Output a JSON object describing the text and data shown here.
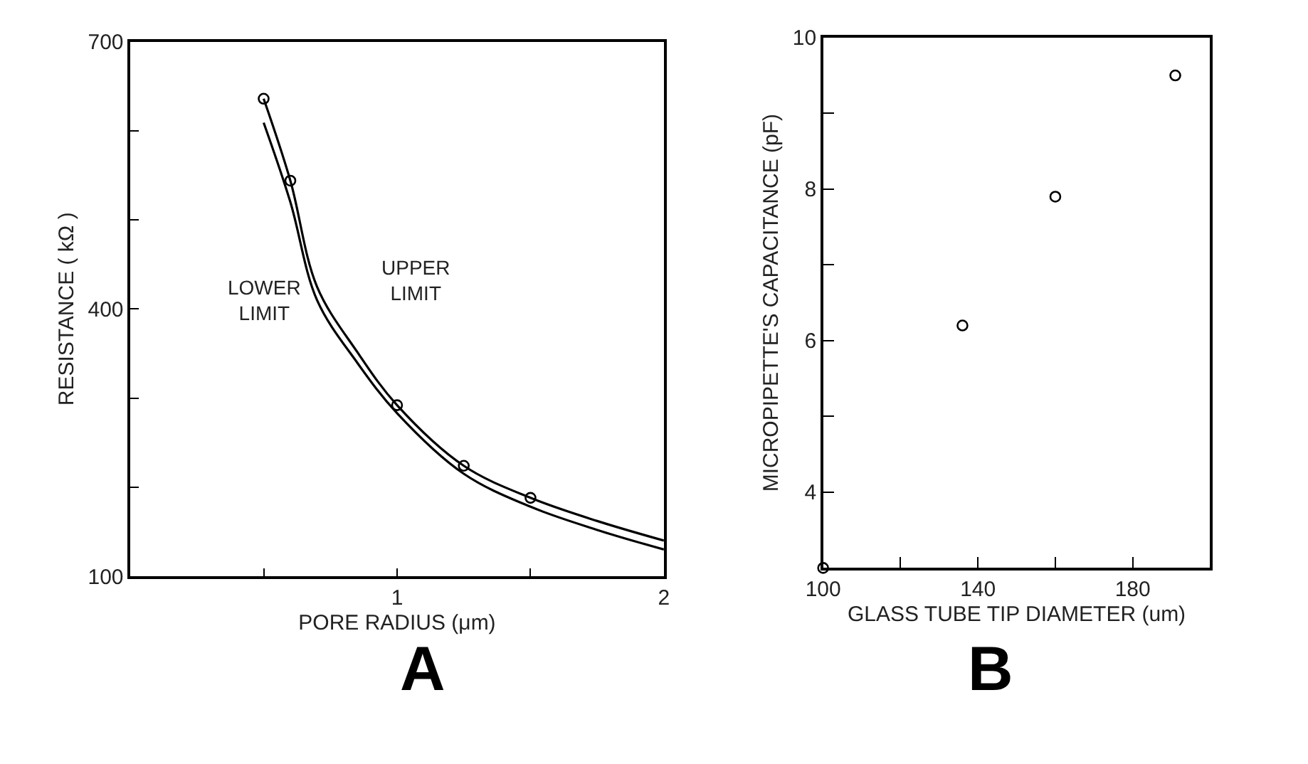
{
  "chart_data": [
    {
      "type": "line",
      "xlabel": "PORE RADIUS (μm)",
      "ylabel": "RESISTANCE ( kΩ )",
      "xlim": [
        0,
        2
      ],
      "ylim": [
        100,
        700
      ],
      "xticks": [
        {
          "value": 0.5,
          "label": null
        },
        1,
        {
          "value": 1.5,
          "label": null
        },
        2
      ],
      "yticks": [
        100,
        {
          "value": 200,
          "label": null
        },
        {
          "value": 300,
          "label": null
        },
        400,
        {
          "value": 500,
          "label": null
        },
        {
          "value": 600,
          "label": null
        },
        700
      ],
      "legend": false,
      "series": [
        {
          "type": "line",
          "name": "UPPER LIMIT",
          "color": "#000000",
          "marker": "none",
          "x": [
            0.5,
            0.6,
            0.7,
            0.85,
            1.0,
            1.25,
            1.5,
            1.75,
            2.0
          ],
          "values": [
            636,
            544,
            425,
            352,
            292,
            224,
            188,
            162,
            140
          ]
        },
        {
          "type": "line",
          "name": "LOWER LIMIT",
          "color": "#000000",
          "marker": "none",
          "x": [
            0.5,
            0.6,
            0.7,
            0.85,
            1.0,
            1.25,
            1.5,
            1.75,
            2.0
          ],
          "values": [
            609,
            520,
            410,
            340,
            283,
            215,
            178,
            152,
            130
          ]
        },
        {
          "type": "scatter",
          "color": "#000000",
          "marker": "circle",
          "x": [
            0.5,
            0.6,
            1.0,
            1.25,
            1.5
          ],
          "values": [
            636,
            544,
            292,
            224,
            188
          ]
        }
      ],
      "annotations": [
        "A"
      ]
    },
    {
      "type": "scatter",
      "xlabel": "GLASS TUBE TIP DIAMETER (um)",
      "ylabel": "MICROPIPETTE'S CAPACITANCE (pF)",
      "xlim": [
        100,
        200
      ],
      "ylim": [
        3,
        10
      ],
      "xticks": [
        100,
        {
          "value": 120,
          "label": null
        },
        140,
        {
          "value": 160,
          "label": null
        },
        180
      ],
      "yticks": [
        4,
        {
          "value": 5,
          "label": null
        },
        6,
        {
          "value": 7,
          "label": null
        },
        8,
        {
          "value": 9,
          "label": null
        },
        10
      ],
      "legend": false,
      "marker": "circle",
      "series": [
        {
          "color": "#000000",
          "x": [
            100,
            136,
            160,
            191
          ],
          "values": [
            3.0,
            6.2,
            7.9,
            9.5
          ]
        }
      ],
      "annotations": [
        "B"
      ]
    }
  ]
}
